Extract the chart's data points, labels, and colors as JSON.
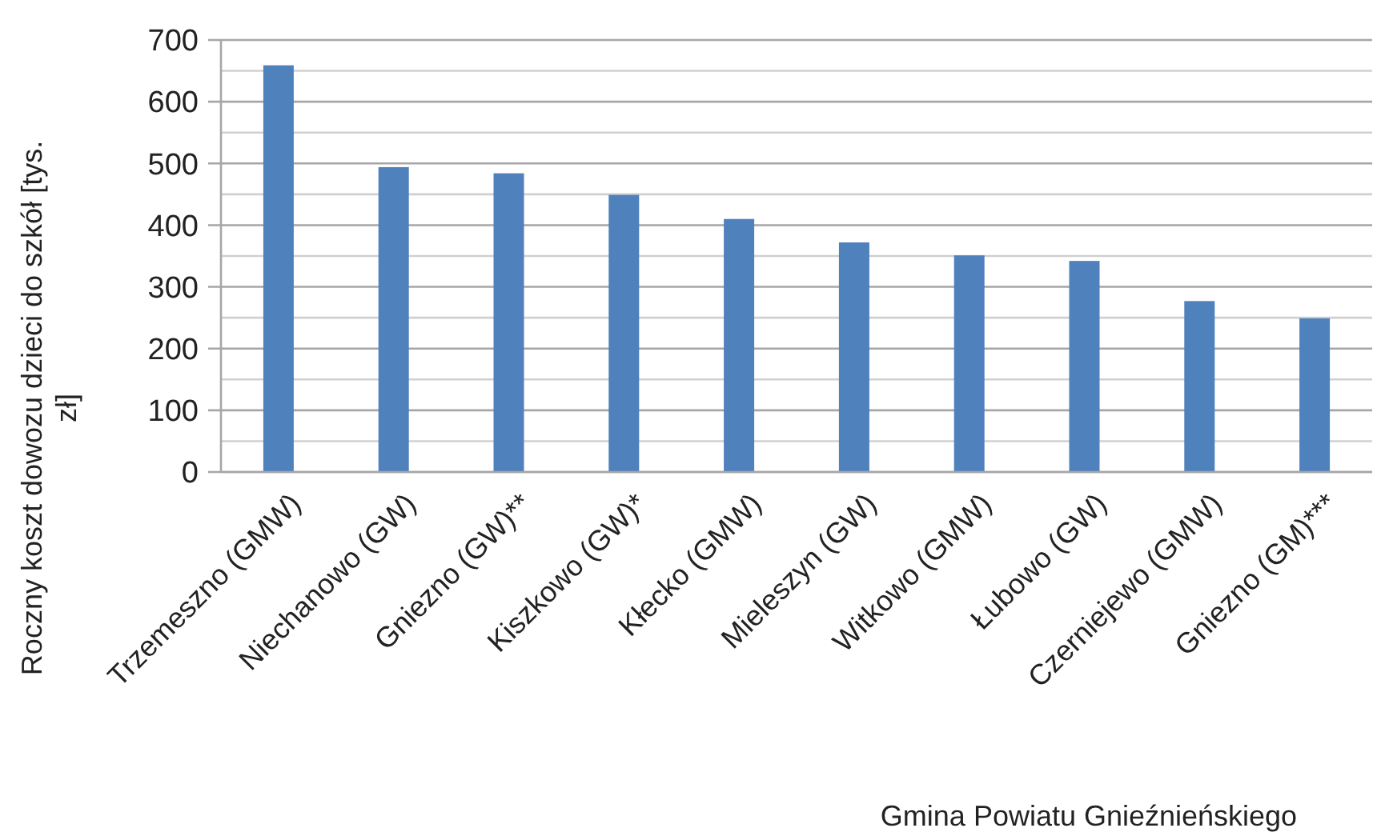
{
  "chart_data": {
    "type": "bar",
    "ylabel": "Roczny koszt dowozu dzieci do szkół [tys. zł]",
    "xlabel": "Gmina Powiatu Gnieźnieńskiego",
    "categories": [
      "Trzemeszno (GMW)",
      "Niechanowo (GW)",
      "Gniezno (GW)**",
      "Kiszkowo (GW)*",
      "Kłecko (GMW)",
      "Mieleszyn (GW)",
      "Witkowo (GMW)",
      "Łubowo (GW)",
      "Czerniejewo (GMW)",
      "Gniezno (GM)***"
    ],
    "values": [
      659,
      494,
      484,
      449,
      410,
      372,
      351,
      342,
      277,
      249
    ],
    "color": "#4f81bd",
    "ylim": [
      0,
      700
    ],
    "yticks": [
      0,
      {
        "value": 50,
        "label": null
      },
      100,
      {
        "value": 150,
        "label": null
      },
      200,
      {
        "value": 250,
        "label": null
      },
      300,
      {
        "value": 350,
        "label": null
      },
      400,
      {
        "value": 450,
        "label": null
      },
      500,
      {
        "value": 550,
        "label": null
      },
      600,
      {
        "value": 650,
        "label": null
      },
      700
    ],
    "grid": true
  }
}
